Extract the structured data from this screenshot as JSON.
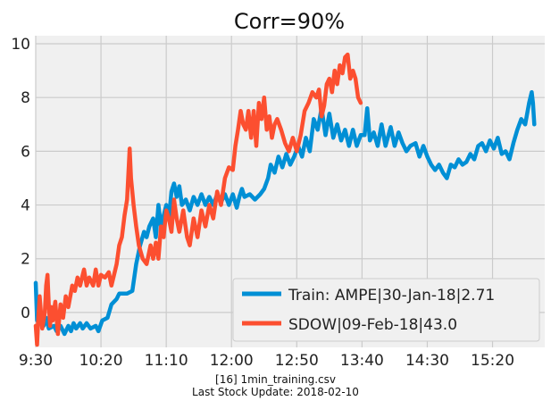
{
  "caption": {
    "line1": "[16] 1min_training.csv",
    "line2": "Last Stock Update: 2018-02-10"
  },
  "colors": {
    "train": "#008fd5",
    "sdow": "#fc4f30",
    "background": "#f0f0f0",
    "grid": "#cbcbcb"
  },
  "chart_data": {
    "type": "line",
    "title": "Corr=90%",
    "xlabel": "",
    "ylabel": "",
    "x_unit": "time of day",
    "xlim": [
      "9:30",
      "16:00"
    ],
    "ylim": [
      -1.3,
      10.3
    ],
    "x_ticks": [
      "9:30",
      "10:20",
      "11:10",
      "12:00",
      "12:50",
      "13:40",
      "14:30",
      "15:20"
    ],
    "y_ticks": [
      0,
      2,
      4,
      6,
      8,
      10
    ],
    "grid": true,
    "legend_position": "lower-right",
    "series": [
      {
        "name": "Train: AMPE|30-Jan-18|2.71",
        "color": "#008fd5",
        "points": [
          [
            "9:30",
            1.1
          ],
          [
            "9:31",
            -0.3
          ],
          [
            "9:32",
            0.4
          ],
          [
            "9:34",
            -0.3
          ],
          [
            "9:36",
            -0.5
          ],
          [
            "9:38",
            -0.2
          ],
          [
            "9:40",
            -0.6
          ],
          [
            "9:44",
            -0.5
          ],
          [
            "9:46",
            -0.7
          ],
          [
            "9:49",
            -0.5
          ],
          [
            "9:52",
            -0.8
          ],
          [
            "9:55",
            -0.5
          ],
          [
            "9:57",
            -0.7
          ],
          [
            "9:59",
            -0.4
          ],
          [
            "10:01",
            -0.6
          ],
          [
            "10:04",
            -0.4
          ],
          [
            "10:06",
            -0.6
          ],
          [
            "10:09",
            -0.4
          ],
          [
            "10:12",
            -0.6
          ],
          [
            "10:16",
            -0.5
          ],
          [
            "10:18",
            -0.7
          ],
          [
            "10:21",
            -0.3
          ],
          [
            "10:25",
            -0.2
          ],
          [
            "10:28",
            0.3
          ],
          [
            "10:32",
            0.5
          ],
          [
            "10:34",
            0.7
          ],
          [
            "10:40",
            0.7
          ],
          [
            "10:44",
            0.8
          ],
          [
            "10:47",
            1.8
          ],
          [
            "10:50",
            2.5
          ],
          [
            "10:53",
            3.0
          ],
          [
            "10:55",
            2.8
          ],
          [
            "10:57",
            3.2
          ],
          [
            "11:00",
            3.5
          ],
          [
            "11:02",
            2.8
          ],
          [
            "11:04",
            4.0
          ],
          [
            "11:06",
            3.2
          ],
          [
            "11:08",
            3.6
          ],
          [
            "11:10",
            4.0
          ],
          [
            "11:12",
            3.5
          ],
          [
            "11:14",
            4.5
          ],
          [
            "11:16",
            4.8
          ],
          [
            "11:18",
            4.3
          ],
          [
            "11:20",
            4.7
          ],
          [
            "11:22",
            4.0
          ],
          [
            "11:25",
            4.2
          ],
          [
            "11:28",
            3.8
          ],
          [
            "11:31",
            4.3
          ],
          [
            "11:34",
            4.0
          ],
          [
            "11:37",
            4.4
          ],
          [
            "11:40",
            4.0
          ],
          [
            "11:43",
            4.3
          ],
          [
            "11:46",
            4.0
          ],
          [
            "11:49",
            4.4
          ],
          [
            "11:52",
            4.1
          ],
          [
            "11:55",
            4.4
          ],
          [
            "11:58",
            4.0
          ],
          [
            "12:01",
            4.4
          ],
          [
            "12:04",
            3.9
          ],
          [
            "12:06",
            4.3
          ],
          [
            "12:08",
            4.6
          ],
          [
            "12:10",
            4.3
          ],
          [
            "12:14",
            4.4
          ],
          [
            "12:18",
            4.2
          ],
          [
            "12:22",
            4.4
          ],
          [
            "12:25",
            4.6
          ],
          [
            "12:28",
            5.0
          ],
          [
            "12:30",
            5.5
          ],
          [
            "12:33",
            5.2
          ],
          [
            "12:36",
            5.8
          ],
          [
            "12:39",
            5.4
          ],
          [
            "12:42",
            5.9
          ],
          [
            "12:45",
            5.5
          ],
          [
            "12:48",
            5.8
          ],
          [
            "12:51",
            6.2
          ],
          [
            "12:54",
            5.8
          ],
          [
            "12:57",
            6.5
          ],
          [
            "13:00",
            6.0
          ],
          [
            "13:03",
            7.2
          ],
          [
            "13:06",
            6.8
          ],
          [
            "13:09",
            7.6
          ],
          [
            "13:12",
            6.6
          ],
          [
            "13:15",
            7.4
          ],
          [
            "13:18",
            6.5
          ],
          [
            "13:21",
            7.0
          ],
          [
            "13:24",
            6.4
          ],
          [
            "13:27",
            6.8
          ],
          [
            "13:30",
            6.2
          ],
          [
            "13:33",
            6.8
          ],
          [
            "13:36",
            6.2
          ],
          [
            "13:39",
            6.6
          ],
          [
            "13:42",
            6.6
          ],
          [
            "13:44",
            7.6
          ],
          [
            "13:46",
            6.4
          ],
          [
            "13:49",
            6.7
          ],
          [
            "13:52",
            6.2
          ],
          [
            "13:55",
            7.0
          ],
          [
            "13:58",
            6.2
          ],
          [
            "14:02",
            6.9
          ],
          [
            "14:05",
            6.2
          ],
          [
            "14:08",
            6.7
          ],
          [
            "14:11",
            6.3
          ],
          [
            "14:14",
            6.0
          ],
          [
            "14:17",
            6.2
          ],
          [
            "14:21",
            6.3
          ],
          [
            "14:24",
            5.8
          ],
          [
            "14:27",
            6.2
          ],
          [
            "14:30",
            5.8
          ],
          [
            "14:33",
            5.5
          ],
          [
            "14:36",
            5.3
          ],
          [
            "14:39",
            5.5
          ],
          [
            "14:42",
            5.2
          ],
          [
            "14:45",
            5.0
          ],
          [
            "14:48",
            5.5
          ],
          [
            "14:51",
            5.4
          ],
          [
            "14:54",
            5.7
          ],
          [
            "14:57",
            5.5
          ],
          [
            "15:00",
            5.6
          ],
          [
            "15:03",
            5.9
          ],
          [
            "15:06",
            5.7
          ],
          [
            "15:09",
            6.2
          ],
          [
            "15:12",
            6.3
          ],
          [
            "15:15",
            6.0
          ],
          [
            "15:18",
            6.4
          ],
          [
            "15:21",
            6.1
          ],
          [
            "15:24",
            6.5
          ],
          [
            "15:27",
            5.9
          ],
          [
            "15:30",
            6.0
          ],
          [
            "15:33",
            5.7
          ],
          [
            "15:36",
            6.3
          ],
          [
            "15:39",
            6.8
          ],
          [
            "15:42",
            7.2
          ],
          [
            "15:45",
            7.0
          ],
          [
            "15:48",
            7.8
          ],
          [
            "15:50",
            8.2
          ],
          [
            "15:51",
            7.8
          ],
          [
            "15:52",
            7.0
          ]
        ]
      },
      {
        "name": "SDOW|09-Feb-18|43.0",
        "color": "#fc4f30",
        "points": [
          [
            "9:30",
            -0.5
          ],
          [
            "9:31",
            -1.2
          ],
          [
            "9:32",
            -0.2
          ],
          [
            "9:33",
            0.6
          ],
          [
            "9:35",
            -0.6
          ],
          [
            "9:37",
            0.0
          ],
          [
            "9:38",
            1.0
          ],
          [
            "9:39",
            1.4
          ],
          [
            "9:40",
            0.3
          ],
          [
            "9:41",
            -0.5
          ],
          [
            "9:42",
            0.2
          ],
          [
            "9:43",
            -0.3
          ],
          [
            "9:45",
            0.4
          ],
          [
            "9:47",
            -0.8
          ],
          [
            "9:49",
            0.3
          ],
          [
            "9:51",
            -0.2
          ],
          [
            "9:53",
            0.6
          ],
          [
            "9:55",
            0.2
          ],
          [
            "9:58",
            1.0
          ],
          [
            "10:00",
            0.8
          ],
          [
            "10:02",
            1.3
          ],
          [
            "10:04",
            1.0
          ],
          [
            "10:07",
            1.6
          ],
          [
            "10:09",
            1.0
          ],
          [
            "10:11",
            1.3
          ],
          [
            "10:14",
            1.0
          ],
          [
            "10:16",
            1.6
          ],
          [
            "10:18",
            1.0
          ],
          [
            "10:20",
            1.4
          ],
          [
            "10:23",
            1.3
          ],
          [
            "10:26",
            1.5
          ],
          [
            "10:28",
            1.0
          ],
          [
            "10:30",
            1.4
          ],
          [
            "10:32",
            1.8
          ],
          [
            "10:34",
            2.5
          ],
          [
            "10:36",
            2.8
          ],
          [
            "10:38",
            3.6
          ],
          [
            "10:40",
            4.2
          ],
          [
            "10:42",
            6.1
          ],
          [
            "10:43",
            5.0
          ],
          [
            "10:45",
            4.0
          ],
          [
            "10:47",
            3.2
          ],
          [
            "10:49",
            2.5
          ],
          [
            "10:52",
            2.0
          ],
          [
            "10:55",
            1.8
          ],
          [
            "10:58",
            2.5
          ],
          [
            "11:00",
            2.0
          ],
          [
            "11:02",
            2.6
          ],
          [
            "11:04",
            2.0
          ],
          [
            "11:06",
            3.2
          ],
          [
            "11:08",
            2.8
          ],
          [
            "11:10",
            3.8
          ],
          [
            "11:12",
            3.5
          ],
          [
            "11:14",
            3.0
          ],
          [
            "11:16",
            4.2
          ],
          [
            "11:18",
            3.5
          ],
          [
            "11:20",
            3.0
          ],
          [
            "11:23",
            3.8
          ],
          [
            "11:26",
            2.8
          ],
          [
            "11:28",
            2.5
          ],
          [
            "11:31",
            3.5
          ],
          [
            "11:34",
            2.8
          ],
          [
            "11:37",
            3.8
          ],
          [
            "11:40",
            3.2
          ],
          [
            "11:43",
            4.0
          ],
          [
            "11:46",
            3.5
          ],
          [
            "11:49",
            4.5
          ],
          [
            "11:52",
            4.0
          ],
          [
            "11:55",
            5.0
          ],
          [
            "11:58",
            5.4
          ],
          [
            "12:01",
            5.3
          ],
          [
            "12:03",
            6.2
          ],
          [
            "12:05",
            6.8
          ],
          [
            "12:07",
            7.5
          ],
          [
            "12:09",
            7.0
          ],
          [
            "12:11",
            6.8
          ],
          [
            "12:13",
            7.5
          ],
          [
            "12:15",
            6.5
          ],
          [
            "12:17",
            7.5
          ],
          [
            "12:19",
            6.2
          ],
          [
            "12:21",
            7.8
          ],
          [
            "12:23",
            7.2
          ],
          [
            "12:25",
            8.0
          ],
          [
            "12:27",
            6.8
          ],
          [
            "12:29",
            7.3
          ],
          [
            "12:31",
            6.5
          ],
          [
            "12:33",
            7.0
          ],
          [
            "12:35",
            7.2
          ],
          [
            "12:38",
            6.8
          ],
          [
            "12:41",
            6.3
          ],
          [
            "12:44",
            6.0
          ],
          [
            "12:47",
            6.5
          ],
          [
            "12:50",
            6.0
          ],
          [
            "12:53",
            6.6
          ],
          [
            "12:56",
            7.5
          ],
          [
            "12:59",
            7.8
          ],
          [
            "13:02",
            8.2
          ],
          [
            "13:05",
            8.0
          ],
          [
            "13:07",
            8.3
          ],
          [
            "13:09",
            7.3
          ],
          [
            "13:11",
            7.7
          ],
          [
            "13:13",
            8.5
          ],
          [
            "13:15",
            8.7
          ],
          [
            "13:17",
            8.2
          ],
          [
            "13:19",
            9.0
          ],
          [
            "13:21",
            8.5
          ],
          [
            "13:23",
            9.2
          ],
          [
            "13:25",
            8.9
          ],
          [
            "13:27",
            9.5
          ],
          [
            "13:29",
            9.6
          ],
          [
            "13:31",
            8.7
          ],
          [
            "13:33",
            9.0
          ],
          [
            "13:35",
            8.7
          ],
          [
            "13:37",
            8.0
          ],
          [
            "13:39",
            7.8
          ]
        ]
      }
    ]
  }
}
